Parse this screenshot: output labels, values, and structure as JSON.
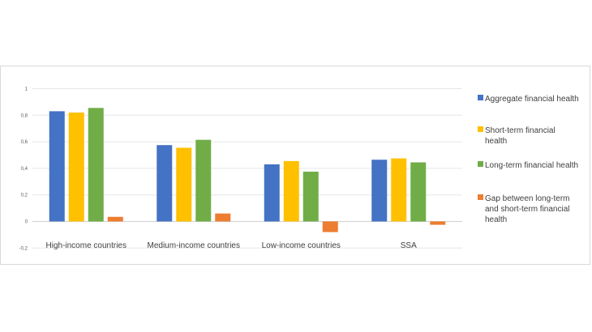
{
  "chart_data": {
    "type": "bar",
    "title": "",
    "xlabel": "",
    "ylabel": "",
    "ylim": [
      -0.2,
      1
    ],
    "yticks": [
      "-0,2",
      "0",
      "0,2",
      "0,4",
      "0,6",
      "0,8",
      "1"
    ],
    "ytick_values": [
      -0.2,
      0,
      0.2,
      0.4,
      0.6,
      0.8,
      1
    ],
    "grid": true,
    "legend_position": "right",
    "categories": [
      "High-income countries",
      "Medium-income countries",
      "Low-income countries",
      "SSA"
    ],
    "series": [
      {
        "name": "Aggregate financial health",
        "color": "#4472c4",
        "values": [
          0.83,
          0.575,
          0.43,
          0.465
        ]
      },
      {
        "name": "Short-term financial health",
        "color": "#ffc000",
        "values": [
          0.82,
          0.555,
          0.455,
          0.475
        ]
      },
      {
        "name": "Long-term financial health",
        "color": "#70ad47",
        "values": [
          0.855,
          0.615,
          0.375,
          0.445
        ]
      },
      {
        "name": "Gap between long-term and short-term financial health",
        "color": "#ed7d31",
        "values": [
          0.035,
          0.06,
          -0.08,
          -0.025
        ]
      }
    ],
    "legend_lines": [
      [
        "Aggregate financial health"
      ],
      [
        "Short-term financial",
        "health"
      ],
      [
        "Long-term financial health"
      ],
      [
        "Gap between long-term",
        "and short-term financial",
        "health"
      ]
    ]
  }
}
